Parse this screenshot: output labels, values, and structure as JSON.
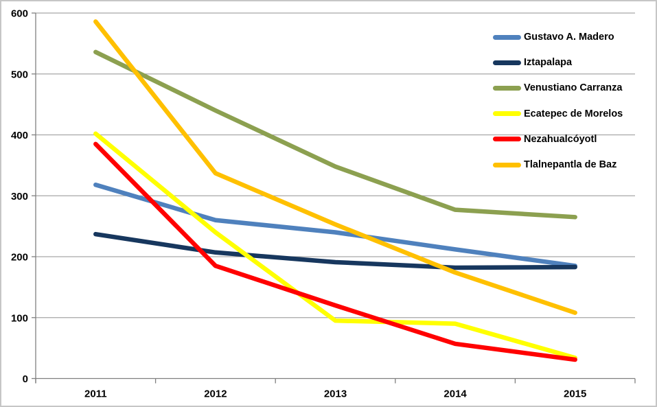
{
  "chart_data": {
    "type": "line",
    "title": "",
    "xlabel": "",
    "ylabel": "",
    "categories": [
      "2011",
      "2012",
      "2013",
      "2014",
      "2015"
    ],
    "series": [
      {
        "name": "Gustavo A. Madero",
        "color": "#4F81BD",
        "values": [
          318,
          260,
          240,
          212,
          185
        ]
      },
      {
        "name": "Iztapalapa",
        "color": "#17375E",
        "values": [
          237,
          207,
          191,
          182,
          183
        ]
      },
      {
        "name": "Venustiano Carranza",
        "color": "#8CA050",
        "values": [
          536,
          440,
          348,
          277,
          265
        ]
      },
      {
        "name": "Ecatepec de Morelos",
        "color": "#FFFF00",
        "values": [
          402,
          240,
          95,
          90,
          34
        ]
      },
      {
        "name": "Nezahualcóyotl",
        "color": "#FF0000",
        "values": [
          385,
          185,
          120,
          57,
          31
        ]
      },
      {
        "name": "Tlalnepantla de Baz",
        "color": "#FFC000",
        "values": [
          586,
          337,
          253,
          174,
          108
        ]
      }
    ],
    "ylim": [
      0,
      600
    ],
    "yticks": [
      0,
      100,
      200,
      300,
      400,
      500,
      600
    ],
    "grid": true,
    "legend_position": "top-right",
    "colors": {
      "gridline": "#A6A6A6",
      "axis": "#7F7F7F",
      "tick_label": "#000000",
      "background": "#FFFFFF",
      "frame_border": "#C6C6C6"
    }
  }
}
